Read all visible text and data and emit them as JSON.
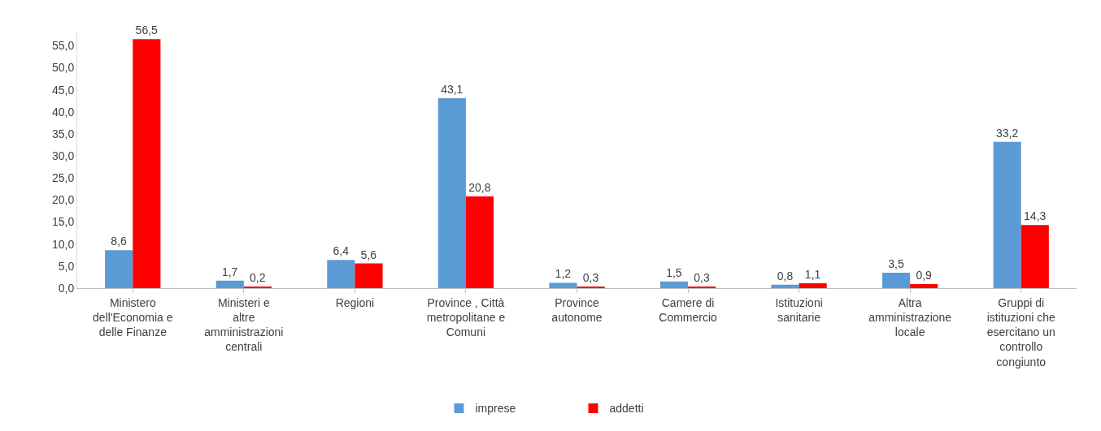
{
  "chart_data": {
    "type": "bar",
    "categories": [
      "Ministero dell'Economia e delle Finanze",
      "Ministeri e altre amministrazioni centrali",
      "Regioni",
      "Province , Città metropolitane e Comuni",
      "Province autonome",
      "Camere di Commercio",
      "Istituzioni sanitarie",
      "Altra amministrazione locale",
      "Gruppi di istituzioni che esercitano un controllo congiunto"
    ],
    "series": [
      {
        "name": "imprese",
        "color": "#5b9bd5",
        "values": [
          8.6,
          1.7,
          6.4,
          43.1,
          1.2,
          1.5,
          0.8,
          3.5,
          33.2
        ],
        "value_labels": [
          "8,6",
          "1,7",
          "6,4",
          "43,1",
          "1,2",
          "1,5",
          "0,8",
          "3,5",
          "33,2"
        ]
      },
      {
        "name": "addetti",
        "color": "#ff0000",
        "values": [
          56.5,
          0.2,
          5.6,
          20.8,
          0.3,
          0.3,
          1.1,
          0.9,
          14.3
        ],
        "value_labels": [
          "56,5",
          "0,2",
          "5,6",
          "20,8",
          "0,3",
          "0,3",
          "1,1",
          "0,9",
          "14,3"
        ]
      }
    ],
    "ylim": [
      0,
      58
    ],
    "yticks": [
      {
        "value": 0,
        "label": "0,0"
      },
      {
        "value": 5,
        "label": "5,0"
      },
      {
        "value": 10,
        "label": "10,0"
      },
      {
        "value": 15,
        "label": "15,0"
      },
      {
        "value": 20,
        "label": "20,0"
      },
      {
        "value": 25,
        "label": "25,0"
      },
      {
        "value": 30,
        "label": "30,0"
      },
      {
        "value": 35,
        "label": "35,0"
      },
      {
        "value": 40,
        "label": "40,0"
      },
      {
        "value": 45,
        "label": "45,0"
      },
      {
        "value": 50,
        "label": "50,0"
      },
      {
        "value": 55,
        "label": "55,0"
      }
    ],
    "grid": false,
    "legend": "bottom"
  }
}
